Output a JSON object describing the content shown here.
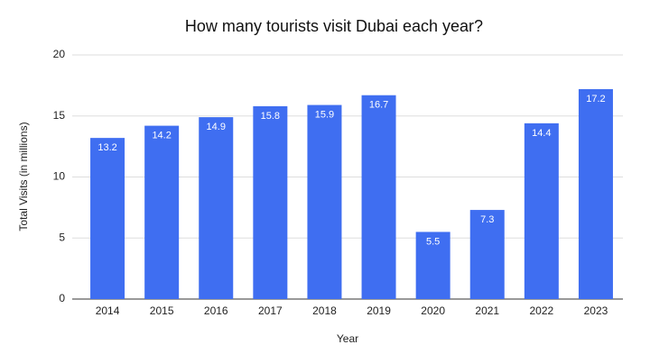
{
  "chart_data": {
    "type": "bar",
    "title": "How many tourists visit Dubai each year?",
    "x_label": "Year",
    "y_label": "Total Visits (in millions)",
    "categories": [
      "2014",
      "2015",
      "2016",
      "2017",
      "2018",
      "2019",
      "2020",
      "2021",
      "2022",
      "2023"
    ],
    "values": [
      13.2,
      14.2,
      14.9,
      15.8,
      15.9,
      16.7,
      5.5,
      7.3,
      14.4,
      17.2
    ],
    "color": "#3f6ef1",
    "ylim": [
      0,
      20
    ],
    "yticks": [
      0,
      5,
      10,
      15,
      20
    ],
    "grid": true
  }
}
